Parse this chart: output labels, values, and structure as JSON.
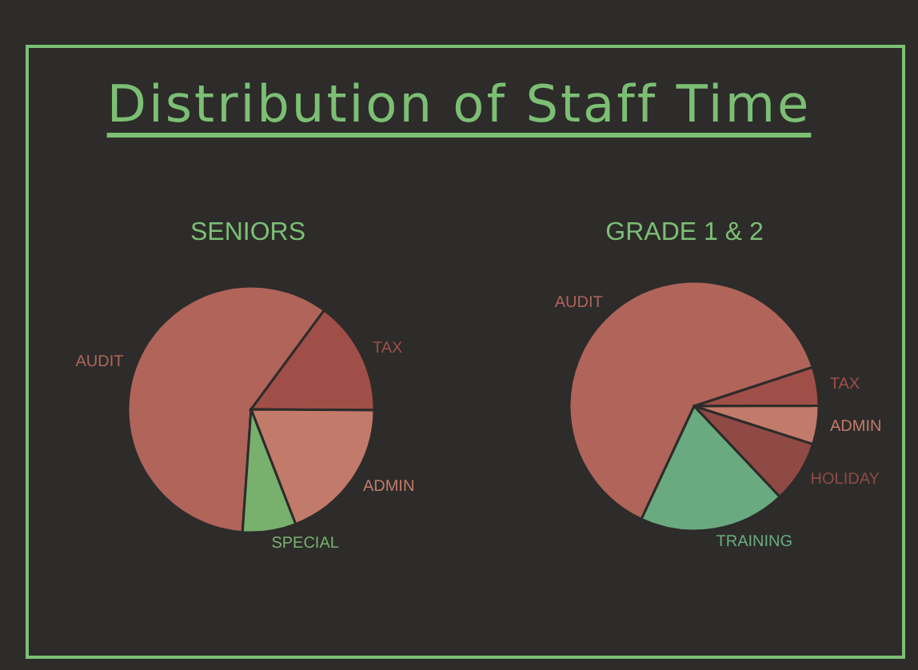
{
  "chart_data": [
    {
      "type": "other",
      "title": "Distribution of Staff Time"
    },
    {
      "type": "pie",
      "title": "SENIORS",
      "categories": [
        "AUDIT",
        "TAX",
        "ADMIN",
        "SPECIAL"
      ],
      "values": [
        59,
        15,
        19,
        7
      ],
      "colors": [
        "#b0645a",
        "#a04f48",
        "#c27a6a",
        "#78b06e"
      ]
    },
    {
      "type": "pie",
      "title": "GRADE 1 & 2",
      "categories": [
        "AUDIT",
        "TAX",
        "ADMIN",
        "HOLIDAY",
        "TRAINING"
      ],
      "values": [
        63,
        5,
        5,
        8,
        19
      ],
      "colors": [
        "#b0645a",
        "#a04f48",
        "#c27a6a",
        "#8f4a45",
        "#6aaa80"
      ]
    }
  ]
}
